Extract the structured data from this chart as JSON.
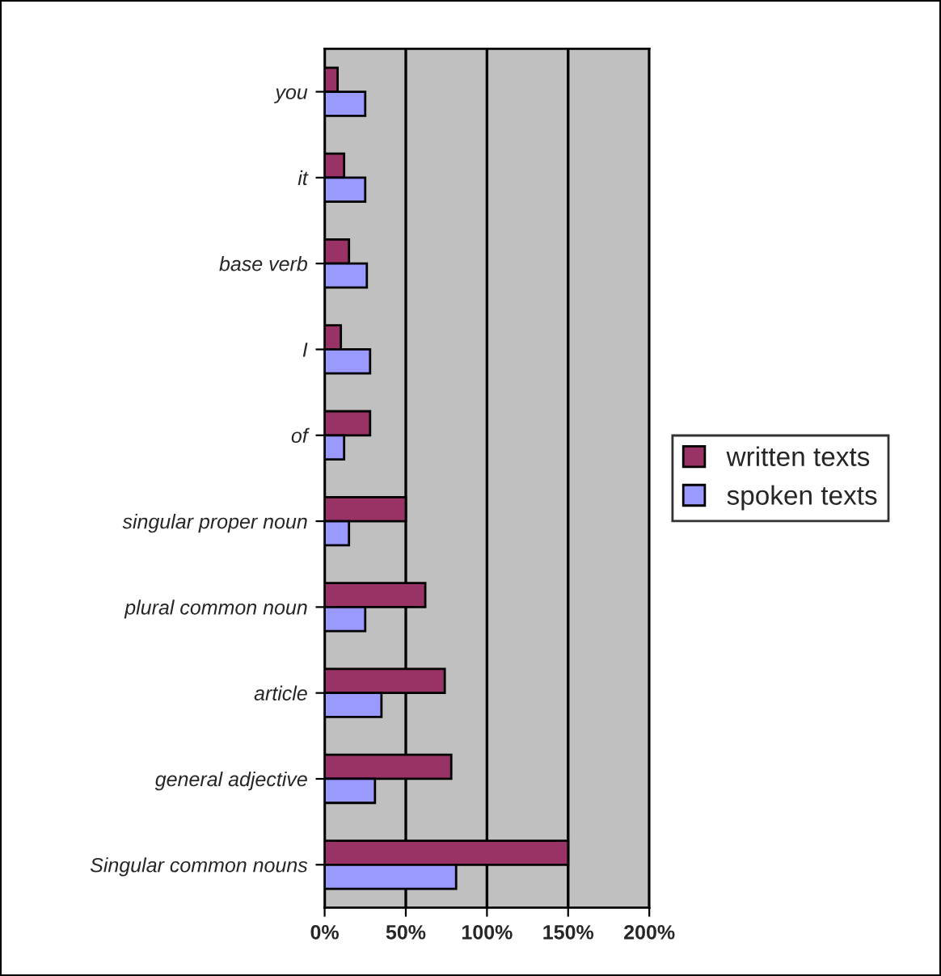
{
  "chart_data": {
    "type": "bar",
    "orientation": "horizontal",
    "categories": [
      "you",
      "it",
      "base verb",
      "I",
      "of",
      "singular proper noun",
      "plural common noun",
      "article",
      "general adjective",
      "Singular common nouns"
    ],
    "series": [
      {
        "name": "written texts",
        "color": "#993366",
        "values": [
          8,
          12,
          15,
          10,
          28,
          50,
          62,
          74,
          78,
          150
        ]
      },
      {
        "name": "spoken texts",
        "color": "#9999ff",
        "values": [
          25,
          25,
          26,
          28,
          12,
          15,
          25,
          35,
          31,
          81
        ]
      }
    ],
    "xlim": [
      0,
      200
    ],
    "xticks": [
      {
        "value": 0,
        "label": "0%"
      },
      {
        "value": 50,
        "label": "50%"
      },
      {
        "value": 100,
        "label": "100%"
      },
      {
        "value": 150,
        "label": "150%"
      },
      {
        "value": 200,
        "label": "200%"
      }
    ],
    "grid": "x",
    "legend": "right"
  }
}
